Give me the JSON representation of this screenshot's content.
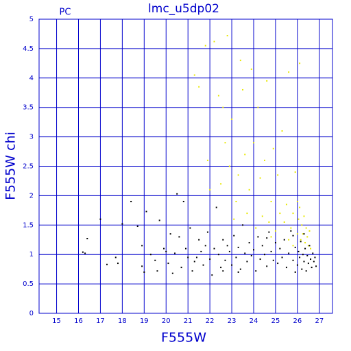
{
  "chart_data": {
    "type": "scatter",
    "title": "lmc_u5dp02",
    "annotation": "PC",
    "x_label": "F555W",
    "y_label": "F555W chi",
    "xlim": [
      14.2,
      27.6
    ],
    "xticks": [
      15,
      16,
      17,
      18,
      19,
      20,
      21,
      22,
      23,
      24,
      25,
      26,
      27
    ],
    "ylim": [
      0,
      5
    ],
    "yticks": [
      0,
      0.5,
      1,
      1.5,
      2,
      2.5,
      3,
      3.5,
      4,
      4.5,
      5
    ],
    "grid": true,
    "axis_color": "#0000cc",
    "series": [
      {
        "color": "#e8e800",
        "x": [
          21.3,
          21.5,
          21.8,
          22.2,
          22.4,
          22.5,
          22.6,
          22.7,
          22.8,
          22.9,
          23.0,
          23.2,
          23.3,
          23.4,
          23.5,
          23.6,
          23.7,
          23.8,
          23.9,
          24.0,
          24.1,
          24.2,
          24.3,
          24.4,
          24.5,
          24.6,
          24.7,
          24.8,
          24.9,
          25.0,
          25.1,
          25.2,
          25.3,
          25.4,
          25.5,
          25.6,
          25.7,
          25.8,
          25.9,
          26.0,
          26.05,
          26.1,
          26.1,
          26.15,
          26.2,
          26.25,
          26.3,
          26.35,
          26.4,
          26.45,
          26.5,
          26.55,
          26.6,
          22.0,
          21.9,
          23.1,
          24.8,
          25.6,
          26.0,
          25.8
        ],
        "values": [
          4.05,
          3.85,
          4.55,
          4.62,
          3.7,
          2.2,
          3.5,
          2.9,
          4.72,
          2.5,
          3.3,
          1.9,
          2.35,
          4.3,
          3.8,
          2.7,
          1.7,
          2.1,
          4.15,
          2.9,
          1.45,
          3.5,
          2.3,
          1.65,
          2.6,
          3.95,
          1.55,
          1.9,
          2.8,
          1.4,
          2.35,
          1.7,
          3.1,
          1.55,
          1.85,
          4.1,
          1.45,
          1.7,
          2.4,
          1.35,
          1.6,
          4.25,
          1.8,
          1.25,
          1.5,
          1.35,
          1.65,
          1.2,
          1.45,
          1.3,
          1.15,
          1.4,
          1.1,
          2.1,
          2.6,
          1.6,
          1.3,
          1.25,
          1.9,
          1.15
        ]
      },
      {
        "color": "#000000",
        "x": [
          16.2,
          16.3,
          16.4,
          17.0,
          17.3,
          17.7,
          17.8,
          18.0,
          18.4,
          18.7,
          18.9,
          18.9,
          19.0,
          19.1,
          19.3,
          19.5,
          19.6,
          19.7,
          19.9,
          20.1,
          20.2,
          20.3,
          20.4,
          20.5,
          20.6,
          20.7,
          20.8,
          20.9,
          21.0,
          21.1,
          21.2,
          21.3,
          21.5,
          21.6,
          21.7,
          21.8,
          21.9,
          22.0,
          22.1,
          22.2,
          22.3,
          22.4,
          22.5,
          22.6,
          22.7,
          22.8,
          22.9,
          23.0,
          23.1,
          23.2,
          23.3,
          23.4,
          23.5,
          23.6,
          23.7,
          23.8,
          23.9,
          24.0,
          24.1,
          24.2,
          24.3,
          24.4,
          24.5,
          24.6,
          24.7,
          24.8,
          24.9,
          25.0,
          25.1,
          25.2,
          25.3,
          25.4,
          25.5,
          25.6,
          25.7,
          25.8,
          25.9,
          26.0,
          26.05,
          26.1,
          26.15,
          26.2,
          26.25,
          26.3,
          26.35,
          26.4,
          26.45,
          26.5,
          26.55,
          26.6,
          26.65,
          26.7,
          26.75,
          26.8,
          26.85,
          23.3,
          24.6,
          25.8,
          22.6,
          21.4,
          20.0,
          26.3,
          25.9
        ],
        "values": [
          1.04,
          1.02,
          1.27,
          1.6,
          0.83,
          0.95,
          0.85,
          1.52,
          1.9,
          1.48,
          1.15,
          0.8,
          0.7,
          1.73,
          1.0,
          0.9,
          0.72,
          1.58,
          1.1,
          0.85,
          1.35,
          0.68,
          1.02,
          2.03,
          1.3,
          0.78,
          1.9,
          1.1,
          0.95,
          1.45,
          0.72,
          0.88,
          1.25,
          1.05,
          0.82,
          1.15,
          1.38,
          0.92,
          0.65,
          1.1,
          1.8,
          1.0,
          0.78,
          1.25,
          0.9,
          1.15,
          1.05,
          0.82,
          1.32,
          0.95,
          1.12,
          0.75,
          1.5,
          1.02,
          0.88,
          1.2,
          0.98,
          1.08,
          0.72,
          1.3,
          0.92,
          1.15,
          1.0,
          0.8,
          1.38,
          1.05,
          0.9,
          1.2,
          0.85,
          1.1,
          0.95,
          1.25,
          0.78,
          1.02,
          1.4,
          0.9,
          1.12,
          0.82,
          1.05,
          0.95,
          1.22,
          0.75,
          1.0,
          0.88,
          1.1,
          0.72,
          0.98,
          0.85,
          1.15,
          0.92,
          0.78,
          1.02,
          0.88,
          0.95,
          0.8,
          0.7,
          1.28,
          1.32,
          0.72,
          0.95,
          1.05,
          1.35,
          0.7
        ]
      }
    ]
  }
}
